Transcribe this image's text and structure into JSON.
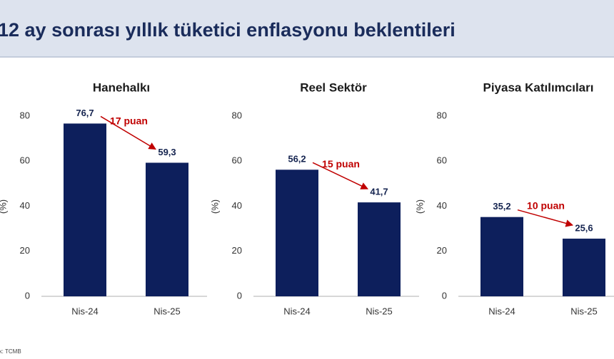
{
  "title": "12 ay sonrası yıllık tüketici enflasyonu beklentileri",
  "source": "Kaynak: TCMB",
  "chart_data": [
    {
      "type": "bar",
      "title": "Hanehalkı",
      "ylabel": "(%)",
      "categories": [
        "Nis-24",
        "Nis-25"
      ],
      "values": [
        76.7,
        59.3
      ],
      "value_labels": [
        "76,7",
        "59,3"
      ],
      "annotation": "17 puan",
      "color": "#0d1f5c",
      "ylim": [
        0,
        80
      ],
      "yticks": [
        0,
        20,
        40,
        60,
        80
      ]
    },
    {
      "type": "bar",
      "title": "Reel Sektör",
      "ylabel": "(%)",
      "categories": [
        "Nis-24",
        "Nis-25"
      ],
      "values": [
        56.2,
        41.7
      ],
      "value_labels": [
        "56,2",
        "41,7"
      ],
      "annotation": "15 puan",
      "color": "#0d1f5c",
      "ylim": [
        0,
        80
      ],
      "yticks": [
        0,
        20,
        40,
        60,
        80
      ]
    },
    {
      "type": "bar",
      "title": "Piyasa Katılımcıları",
      "ylabel": "(%)",
      "categories": [
        "Nis-24",
        "Nis-25"
      ],
      "values": [
        35.2,
        25.6
      ],
      "value_labels": [
        "35,2",
        "25,6"
      ],
      "annotation": "10 puan",
      "color": "#0d1f5c",
      "ylim": [
        0,
        80
      ],
      "yticks": [
        0,
        20,
        40,
        60,
        80
      ]
    }
  ]
}
